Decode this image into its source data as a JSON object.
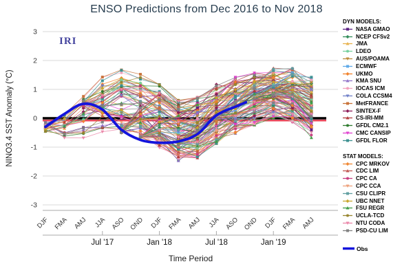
{
  "title": "ENSO Predictions from Dec 2016 to Nov 2018",
  "watermark": "IRI",
  "axes": {
    "y_label": "NINO3.4 SST Anomaly (°C)",
    "x_label": "Time Period",
    "y_tick_labels": [
      "3",
      "2",
      "1",
      "0",
      "-1",
      "-2",
      "-3"
    ],
    "y_tick_values": [
      3,
      2,
      1,
      0,
      -1,
      -2,
      -3
    ]
  },
  "legend": {
    "dyn_header": "DYN MODELS:",
    "stat_header": "STAT MODELS:",
    "obs_label": "Obs",
    "obs_color": "#1414dc",
    "dyn_models": [
      {
        "name": "NASA GMAO",
        "color": "#5a1e82"
      },
      {
        "name": "NCEP CFSv2",
        "color": "#2e8b57"
      },
      {
        "name": "JMA",
        "color": "#e7b24c"
      },
      {
        "name": "LDEO",
        "color": "#74d09c"
      },
      {
        "name": "AUS/POAMA",
        "color": "#bd8a3a"
      },
      {
        "name": "ECMWF",
        "color": "#5da8e8"
      },
      {
        "name": "UKMO",
        "color": "#f07f28"
      },
      {
        "name": "KMA SNU",
        "color": "#8f72c8"
      },
      {
        "name": "IOCAS ICM",
        "color": "#f2a0bc"
      },
      {
        "name": "COLA CCSM4",
        "color": "#7080c8"
      },
      {
        "name": "MetFRANCE",
        "color": "#c87137"
      },
      {
        "name": "SINTEX-F",
        "color": "#8b1a55"
      },
      {
        "name": "CS-IRI-MM",
        "color": "#b03a3a"
      },
      {
        "name": "GFDL CM2.1",
        "color": "#2d7a2d"
      },
      {
        "name": "CMC CANSIP",
        "color": "#e040d0"
      },
      {
        "name": "GFDL FLOR",
        "color": "#3a8f8f"
      }
    ],
    "stat_models": [
      {
        "name": "CPC MRKOV",
        "color": "#ef8632"
      },
      {
        "name": "CDC LIM",
        "color": "#bf5650"
      },
      {
        "name": "CPC CA",
        "color": "#c73b7e"
      },
      {
        "name": "CPC CCA",
        "color": "#eda07a"
      },
      {
        "name": "CSU CLIPR",
        "color": "#5f9ea0"
      },
      {
        "name": "UBC NNET",
        "color": "#c8a62c"
      },
      {
        "name": "FSU REGR",
        "color": "#3d9b45"
      },
      {
        "name": "UCLA-TCD",
        "color": "#97852e"
      },
      {
        "name": "NTU CODA",
        "color": "#ea86a8"
      },
      {
        "name": "PSD-CU LIM",
        "color": "#7f7f7f"
      }
    ]
  },
  "chart_data": {
    "type": "line",
    "title": "ENSO Predictions from Dec 2016 to Nov 2018",
    "xlabel": "Time Period",
    "ylabel": "NINO3.4 SST Anomaly (°C)",
    "ylim": [
      -3,
      3
    ],
    "grid": "horizontal-light",
    "legend_position": "right",
    "categories": [
      "DJF",
      "FMA",
      "AMJ",
      "JJA",
      "ASO",
      "OND",
      "DJF",
      "FMA",
      "AMJ",
      "JJA",
      "ASO",
      "OND",
      "DJF",
      "FMA",
      "AMJ"
    ],
    "secondary_x_ticks": [
      {
        "label": "Jul '17",
        "season_index": 3
      },
      {
        "label": "Jan '18",
        "season_index": 6
      },
      {
        "label": "Jul '18",
        "season_index": 9
      },
      {
        "label": "Jan '19",
        "season_index": 12
      }
    ],
    "zero_line": {
      "color": "#000000",
      "value": 0
    },
    "baseline_red": {
      "color": "#e83e52",
      "value": -0.08
    },
    "obs_series": {
      "name": "Obs",
      "color": "#1414dc",
      "x_index": [
        0,
        1,
        2,
        3,
        4,
        5,
        6,
        7,
        8,
        9,
        10,
        10.55
      ],
      "values": [
        -0.3,
        0.15,
        0.5,
        0.3,
        -0.4,
        -0.75,
        -0.85,
        -0.8,
        -0.55,
        0.1,
        0.4,
        0.55
      ]
    },
    "plume_envelope": {
      "x_index": [
        0,
        1,
        2,
        3,
        4,
        5,
        6,
        7,
        8,
        9,
        10,
        11,
        12,
        13,
        14
      ],
      "top": [
        0.35,
        0.6,
        1.05,
        1.5,
        1.75,
        1.6,
        1.25,
        0.7,
        0.8,
        1.25,
        1.55,
        1.7,
        1.8,
        1.8,
        1.5
      ],
      "bottom": [
        -0.55,
        -1.1,
        -0.8,
        -0.6,
        -0.45,
        -0.6,
        -1.1,
        -1.55,
        -1.45,
        -1.0,
        -0.6,
        -0.3,
        -0.05,
        -0.2,
        -0.75
      ]
    },
    "forecast_starts": [
      {
        "x_index": 0,
        "anchor": -0.3
      },
      {
        "x_index": 2,
        "anchor": 0.5
      },
      {
        "x_index": 4,
        "anchor": -0.4
      },
      {
        "x_index": 5,
        "anchor": -0.75
      },
      {
        "x_index": 7,
        "anchor": -0.8
      },
      {
        "x_index": 9,
        "anchor": 0.1
      },
      {
        "x_index": 11,
        "anchor": 0.7
      },
      {
        "x_index": 12,
        "anchor": 0.9
      }
    ]
  },
  "colors": {
    "grid": "#d8d8d8",
    "axis": "#aaaaaa",
    "tick_text": "#3a3a3a",
    "title_text": "#263c4e",
    "watermark_text": "#44449e"
  }
}
